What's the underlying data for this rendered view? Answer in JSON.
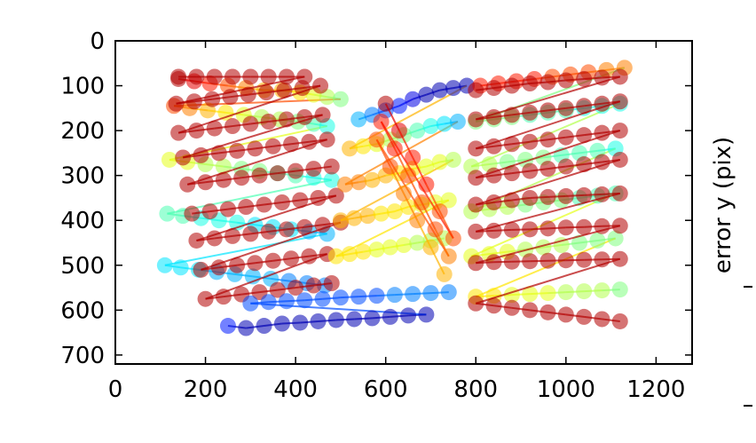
{
  "chart_data": {
    "type": "scatter",
    "title": "",
    "xlabel": "",
    "ylabel": "error y (pix)",
    "xlim": [
      0,
      1280
    ],
    "ylim": [
      0,
      720
    ],
    "y_inverted": true,
    "x_ticks": [
      "0",
      "200",
      "400",
      "600",
      "800",
      "1000",
      "1200"
    ],
    "y_ticks": [
      "0",
      "100",
      "200",
      "300",
      "400",
      "500",
      "600",
      "700"
    ],
    "grid": false,
    "legend": "none",
    "colormap": "jet",
    "marker": "circle",
    "connected_points": true,
    "description_of_values": "dense grids of detected target points drawn as semi-transparent jet-coloured circles joined by line segments",
    "grids": [
      {
        "x": [
          140,
          175,
          210,
          250,
          290,
          330,
          370,
          410,
          440,
          470,
          500,
          130,
          165,
          205,
          245,
          285,
          325,
          365,
          405,
          440,
          470,
          120,
          160,
          200,
          240,
          280,
          320,
          360,
          400,
          440,
          480,
          115,
          150,
          190,
          230,
          270,
          310,
          350,
          390,
          430,
          470,
          110,
          145,
          185,
          225,
          265,
          305,
          345,
          385,
          425,
          465
        ],
        "y": [
          85,
          90,
          95,
          100,
          105,
          110,
          110,
          115,
          120,
          125,
          130,
          145,
          150,
          155,
          160,
          165,
          170,
          175,
          180,
          185,
          190,
          265,
          270,
          275,
          280,
          285,
          290,
          295,
          300,
          305,
          310,
          385,
          390,
          395,
          400,
          405,
          410,
          415,
          420,
          425,
          430,
          500,
          505,
          510,
          515,
          520,
          525,
          530,
          535,
          540,
          545
        ],
        "intensity": [
          0.95,
          0.9,
          0.85,
          0.8,
          0.75,
          0.7,
          0.7,
          0.65,
          0.6,
          0.55,
          0.5,
          0.8,
          0.75,
          0.7,
          0.65,
          0.6,
          0.55,
          0.55,
          0.5,
          0.45,
          0.4,
          0.6,
          0.6,
          0.55,
          0.55,
          0.5,
          0.5,
          0.45,
          0.45,
          0.4,
          0.4,
          0.45,
          0.45,
          0.4,
          0.4,
          0.4,
          0.35,
          0.35,
          0.35,
          0.3,
          0.3,
          0.35,
          0.35,
          0.35,
          0.3,
          0.3,
          0.3,
          0.3,
          0.25,
          0.25,
          0.25
        ]
      },
      {
        "x": [
          140,
          180,
          220,
          260,
          300,
          340,
          380,
          420,
          135,
          175,
          215,
          255,
          295,
          335,
          375,
          415,
          455,
          140,
          180,
          220,
          260,
          300,
          340,
          380,
          420,
          460,
          150,
          190,
          230,
          270,
          310,
          350,
          390,
          430,
          470,
          160,
          200,
          240,
          280,
          320,
          360,
          400,
          440,
          480
        ],
        "y": [
          80,
          80,
          80,
          80,
          80,
          80,
          80,
          80,
          140,
          135,
          130,
          125,
          120,
          115,
          110,
          105,
          100,
          205,
          200,
          195,
          190,
          185,
          180,
          175,
          170,
          165,
          260,
          255,
          250,
          245,
          240,
          235,
          230,
          225,
          220,
          320,
          315,
          310,
          305,
          300,
          295,
          290,
          285,
          280
        ],
        "intensity": [
          0.95,
          0.95,
          0.95,
          0.95,
          0.95,
          0.95,
          0.95,
          0.95,
          0.95,
          0.95,
          0.95,
          0.95,
          0.95,
          0.95,
          0.95,
          0.95,
          0.95,
          0.95,
          0.95,
          0.95,
          0.95,
          0.95,
          0.95,
          0.95,
          0.95,
          0.95,
          0.95,
          0.95,
          0.95,
          0.95,
          0.95,
          0.95,
          0.95,
          0.95,
          0.95,
          0.95,
          0.95,
          0.95,
          0.95,
          0.95,
          0.95,
          0.95,
          0.95,
          0.95
        ]
      },
      {
        "x": [
          170,
          210,
          250,
          290,
          330,
          370,
          410,
          450,
          490,
          180,
          220,
          260,
          300,
          340,
          380,
          420,
          460,
          500,
          190,
          230,
          270,
          310,
          350,
          390,
          430,
          470,
          200,
          240,
          280,
          320,
          360,
          400,
          440,
          480
        ],
        "y": [
          385,
          380,
          375,
          370,
          365,
          360,
          355,
          350,
          345,
          445,
          440,
          435,
          430,
          425,
          420,
          415,
          410,
          405,
          510,
          505,
          500,
          495,
          490,
          485,
          480,
          475,
          575,
          570,
          565,
          560,
          555,
          550,
          545,
          540
        ],
        "intensity": [
          0.95,
          0.95,
          0.95,
          0.95,
          0.95,
          0.95,
          0.95,
          0.95,
          0.95,
          0.95,
          0.95,
          0.95,
          0.95,
          0.95,
          0.95,
          0.95,
          0.95,
          0.95,
          0.95,
          0.95,
          0.95,
          0.95,
          0.95,
          0.95,
          0.95,
          0.95,
          0.95,
          0.95,
          0.95,
          0.95,
          0.95,
          0.95,
          0.95,
          0.95
        ]
      },
      {
        "x": [
          250,
          290,
          330,
          370,
          410,
          450,
          490,
          530,
          570,
          610,
          650,
          690,
          300,
          340,
          380,
          420,
          460,
          500,
          540,
          580,
          620,
          660,
          700,
          740
        ],
        "y": [
          635,
          640,
          635,
          630,
          628,
          625,
          622,
          620,
          618,
          615,
          612,
          610,
          585,
          582,
          580,
          578,
          575,
          572,
          570,
          568,
          566,
          564,
          562,
          560
        ],
        "intensity": [
          0.15,
          0.05,
          0.05,
          0.05,
          0.05,
          0.05,
          0.05,
          0.05,
          0.05,
          0.05,
          0.05,
          0.05,
          0.2,
          0.2,
          0.2,
          0.2,
          0.2,
          0.2,
          0.2,
          0.2,
          0.25,
          0.25,
          0.25,
          0.25
        ]
      },
      {
        "x": [
          540,
          570,
          600,
          630,
          660,
          690,
          720,
          750,
          780,
          520,
          550,
          580,
          610,
          640,
          670,
          700,
          730,
          760,
          510,
          540,
          570,
          600,
          630,
          660,
          690,
          720,
          750,
          500,
          530,
          560,
          590,
          620,
          650,
          680,
          710,
          740,
          490,
          520,
          550,
          580,
          610,
          640,
          670,
          700,
          730
        ],
        "y": [
          175,
          165,
          155,
          145,
          130,
          120,
          110,
          105,
          100,
          240,
          235,
          230,
          220,
          210,
          200,
          190,
          185,
          180,
          320,
          315,
          310,
          300,
          295,
          285,
          280,
          270,
          265,
          400,
          395,
          390,
          385,
          380,
          370,
          365,
          360,
          355,
          480,
          475,
          470,
          465,
          460,
          455,
          450,
          445,
          440
        ],
        "intensity": [
          0.3,
          0.25,
          0.2,
          0.15,
          0.1,
          0.05,
          0.05,
          0.05,
          0.05,
          0.7,
          0.65,
          0.6,
          0.55,
          0.5,
          0.45,
          0.4,
          0.35,
          0.3,
          0.75,
          0.75,
          0.7,
          0.7,
          0.65,
          0.65,
          0.6,
          0.6,
          0.55,
          0.7,
          0.7,
          0.7,
          0.65,
          0.65,
          0.65,
          0.6,
          0.6,
          0.6,
          0.65,
          0.65,
          0.65,
          0.6,
          0.6,
          0.6,
          0.55,
          0.55,
          0.55
        ]
      },
      {
        "x": [
          600,
          630,
          660,
          690,
          720,
          750,
          590,
          620,
          650,
          680,
          710,
          740,
          580,
          610,
          640,
          670,
          700,
          730
        ],
        "y": [
          140,
          200,
          260,
          320,
          380,
          440,
          180,
          240,
          300,
          360,
          420,
          480,
          220,
          280,
          340,
          400,
          460,
          520
        ],
        "intensity": [
          0.95,
          0.9,
          0.85,
          0.85,
          0.8,
          0.8,
          0.85,
          0.85,
          0.8,
          0.8,
          0.8,
          0.75,
          0.8,
          0.8,
          0.75,
          0.75,
          0.7,
          0.7
        ]
      },
      {
        "x": [
          810,
          850,
          890,
          930,
          970,
          1010,
          1050,
          1090,
          1130,
          800,
          840,
          880,
          920,
          960,
          1000,
          1040,
          1080,
          1120,
          790,
          830,
          870,
          910,
          950,
          990,
          1030,
          1070,
          1110,
          790,
          830,
          870,
          910,
          950,
          990,
          1030,
          1070,
          1110,
          790,
          830,
          870,
          910,
          950,
          990,
          1030,
          1070,
          1110,
          800,
          840,
          880,
          920,
          960,
          1000,
          1040,
          1080,
          1120
        ],
        "y": [
          100,
          95,
          90,
          85,
          80,
          75,
          70,
          65,
          60,
          180,
          175,
          170,
          165,
          160,
          155,
          150,
          145,
          140,
          280,
          275,
          270,
          265,
          260,
          255,
          250,
          245,
          240,
          380,
          375,
          370,
          365,
          360,
          355,
          350,
          345,
          340,
          480,
          475,
          470,
          465,
          460,
          455,
          450,
          445,
          440,
          570,
          568,
          566,
          564,
          562,
          560,
          558,
          556,
          554
        ],
        "intensity": [
          0.85,
          0.85,
          0.85,
          0.85,
          0.8,
          0.8,
          0.8,
          0.75,
          0.75,
          0.5,
          0.5,
          0.5,
          0.45,
          0.45,
          0.45,
          0.4,
          0.4,
          0.4,
          0.55,
          0.55,
          0.5,
          0.5,
          0.5,
          0.45,
          0.45,
          0.45,
          0.4,
          0.55,
          0.55,
          0.55,
          0.5,
          0.5,
          0.5,
          0.45,
          0.45,
          0.45,
          0.6,
          0.6,
          0.6,
          0.55,
          0.55,
          0.55,
          0.5,
          0.5,
          0.5,
          0.65,
          0.65,
          0.6,
          0.6,
          0.6,
          0.55,
          0.55,
          0.55,
          0.5
        ]
      },
      {
        "x": [
          800,
          840,
          880,
          920,
          960,
          1000,
          1040,
          1080,
          1120,
          800,
          840,
          880,
          920,
          960,
          1000,
          1040,
          1080,
          1120,
          800,
          840,
          880,
          920,
          960,
          1000,
          1040,
          1080,
          1120,
          800,
          840,
          880,
          920,
          960,
          1000,
          1040,
          1080,
          1120,
          800,
          840,
          880,
          920,
          960,
          1000,
          1040,
          1080,
          1120,
          800,
          840,
          880,
          920,
          960,
          1000,
          1040,
          1080,
          1120,
          800,
          840,
          880,
          920,
          960,
          1000,
          1040,
          1080,
          1120,
          800,
          840,
          880,
          920,
          960,
          1000,
          1040,
          1080,
          1120
        ],
        "y": [
          110,
          105,
          100,
          95,
          92,
          88,
          85,
          82,
          80,
          175,
          170,
          165,
          160,
          155,
          150,
          145,
          140,
          135,
          240,
          235,
          230,
          225,
          220,
          215,
          210,
          205,
          200,
          305,
          300,
          295,
          290,
          285,
          280,
          275,
          270,
          265,
          365,
          360,
          355,
          350,
          348,
          346,
          344,
          342,
          340,
          425,
          423,
          421,
          420,
          418,
          416,
          415,
          413,
          412,
          495,
          493,
          492,
          491,
          490,
          489,
          488,
          487,
          486,
          585,
          590,
          595,
          600,
          605,
          610,
          615,
          620,
          625
        ],
        "intensity": [
          0.95,
          0.95,
          0.95,
          0.95,
          0.95,
          0.95,
          0.95,
          0.95,
          0.95,
          0.95,
          0.95,
          0.95,
          0.95,
          0.95,
          0.95,
          0.95,
          0.95,
          0.95,
          0.95,
          0.95,
          0.95,
          0.95,
          0.95,
          0.95,
          0.95,
          0.95,
          0.95,
          0.95,
          0.95,
          0.95,
          0.95,
          0.95,
          0.95,
          0.95,
          0.95,
          0.95,
          0.95,
          0.95,
          0.95,
          0.95,
          0.95,
          0.95,
          0.95,
          0.95,
          0.95,
          0.95,
          0.95,
          0.95,
          0.95,
          0.95,
          0.95,
          0.95,
          0.95,
          0.95,
          0.95,
          0.95,
          0.95,
          0.95,
          0.95,
          0.95,
          0.95,
          0.95,
          0.95,
          0.95,
          0.95,
          0.95,
          0.95,
          0.95,
          0.95,
          0.95,
          0.95,
          0.95
        ]
      }
    ]
  }
}
